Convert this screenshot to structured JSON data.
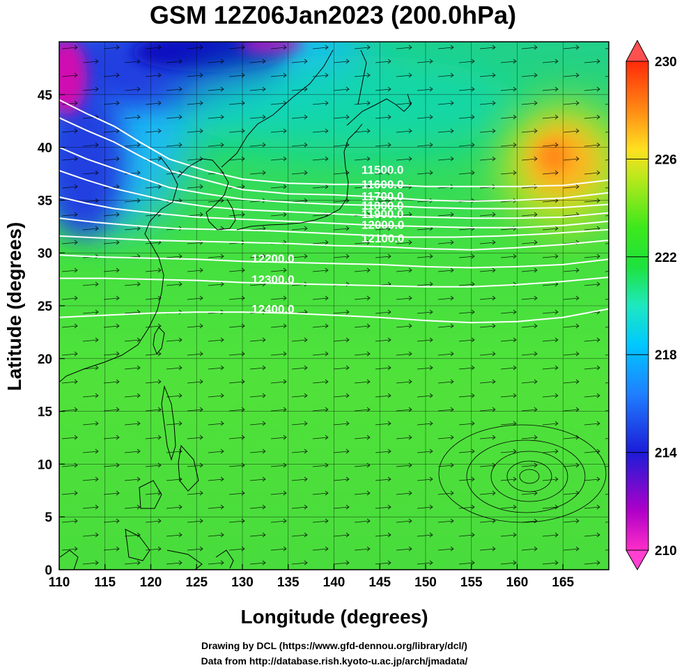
{
  "title": "GSM 12Z06Jan2023 (200.0hPa)",
  "xlabel": "Longitude (degrees)",
  "ylabel": "Latitude  (degrees)",
  "credits": [
    "Drawing by DCL (https://www.gfd-dennou.org/library/dcl/)",
    "Data from http://database.rish.kyoto-u.ac.jp/arch/jmadata/"
  ],
  "map_data": {
    "lon_range": [
      110,
      170
    ],
    "lat_range": [
      0,
      50
    ],
    "lon_ticks": [
      110,
      115,
      120,
      125,
      130,
      135,
      140,
      145,
      150,
      155,
      160,
      165
    ],
    "lat_ticks": [
      0,
      5,
      10,
      15,
      20,
      25,
      30,
      35,
      40,
      45
    ],
    "grid": true,
    "colorbar": {
      "range": [
        210,
        230
      ],
      "tick_labels": [
        "230",
        "226",
        "222",
        "218",
        "214",
        "210"
      ],
      "extend": "both"
    },
    "height_contours": [
      {
        "label": "11500.0",
        "pts": [
          [
            110,
            44.5
          ],
          [
            113,
            43.2
          ],
          [
            116,
            42.0
          ],
          [
            119,
            40.4
          ],
          [
            122,
            38.9
          ],
          [
            126,
            37.8
          ],
          [
            130,
            37.0
          ],
          [
            135,
            36.6
          ],
          [
            140,
            36.5
          ],
          [
            145,
            36.5
          ],
          [
            150,
            36.3
          ],
          [
            155,
            36.3
          ],
          [
            160,
            36.3
          ],
          [
            165,
            36.4
          ],
          [
            170,
            36.9
          ]
        ]
      },
      {
        "label": "11600.0",
        "pts": [
          [
            110,
            42.8
          ],
          [
            113,
            41.6
          ],
          [
            116,
            40.5
          ],
          [
            119,
            39.1
          ],
          [
            122,
            37.8
          ],
          [
            126,
            36.9
          ],
          [
            130,
            36.0
          ],
          [
            135,
            35.6
          ],
          [
            140,
            35.5
          ],
          [
            145,
            35.3
          ],
          [
            150,
            35.0
          ],
          [
            155,
            34.9
          ],
          [
            160,
            35.0
          ],
          [
            165,
            35.2
          ],
          [
            170,
            35.7
          ]
        ]
      },
      {
        "label": "11700.0",
        "pts": [
          [
            110,
            40.0
          ],
          [
            113,
            38.9
          ],
          [
            116,
            38.0
          ],
          [
            119,
            37.1
          ],
          [
            122,
            36.2
          ],
          [
            126,
            35.6
          ],
          [
            130,
            35.1
          ],
          [
            135,
            34.8
          ],
          [
            140,
            34.6
          ],
          [
            145,
            34.5
          ],
          [
            150,
            34.3
          ],
          [
            155,
            34.2
          ],
          [
            160,
            34.2
          ],
          [
            165,
            34.3
          ],
          [
            170,
            34.6
          ]
        ]
      },
      {
        "label": "11800.0",
        "pts": [
          [
            110,
            37.8
          ],
          [
            113,
            36.9
          ],
          [
            116,
            36.1
          ],
          [
            119,
            35.5
          ],
          [
            122,
            34.9
          ],
          [
            126,
            34.4
          ],
          [
            130,
            34.1
          ],
          [
            135,
            33.9
          ],
          [
            140,
            33.7
          ],
          [
            145,
            33.5
          ],
          [
            150,
            33.4
          ],
          [
            155,
            33.3
          ],
          [
            160,
            33.3
          ],
          [
            165,
            33.4
          ],
          [
            170,
            33.8
          ]
        ]
      },
      {
        "label": "11900.0",
        "pts": [
          [
            110,
            35.3
          ],
          [
            113,
            34.7
          ],
          [
            116,
            34.2
          ],
          [
            120,
            33.8
          ],
          [
            125,
            33.4
          ],
          [
            130,
            33.2
          ],
          [
            135,
            33.0
          ],
          [
            140,
            32.8
          ],
          [
            145,
            32.6
          ],
          [
            150,
            32.5
          ],
          [
            155,
            32.4
          ],
          [
            160,
            32.4
          ],
          [
            165,
            32.6
          ],
          [
            170,
            33.0
          ]
        ]
      },
      {
        "label": "12000.0",
        "pts": [
          [
            110,
            33.3
          ],
          [
            114,
            32.9
          ],
          [
            118,
            32.6
          ],
          [
            123,
            32.3
          ],
          [
            128,
            32.2
          ],
          [
            133,
            32.1
          ],
          [
            138,
            31.9
          ],
          [
            143,
            31.7
          ],
          [
            148,
            31.5
          ],
          [
            153,
            31.5
          ],
          [
            158,
            31.6
          ],
          [
            163,
            31.8
          ],
          [
            170,
            32.2
          ]
        ]
      },
      {
        "label": "12100.0",
        "pts": [
          [
            110,
            31.6
          ],
          [
            115,
            31.4
          ],
          [
            120,
            31.2
          ],
          [
            125,
            31.1
          ],
          [
            130,
            31.0
          ],
          [
            135,
            30.9
          ],
          [
            140,
            30.7
          ],
          [
            145,
            30.6
          ],
          [
            150,
            30.4
          ],
          [
            155,
            30.3
          ],
          [
            160,
            30.5
          ],
          [
            165,
            30.8
          ],
          [
            170,
            31.2
          ]
        ]
      },
      {
        "label": "12200.0",
        "pts": [
          [
            110,
            29.8
          ],
          [
            115,
            29.6
          ],
          [
            120,
            29.5
          ],
          [
            125,
            29.4
          ],
          [
            130,
            29.2
          ],
          [
            135,
            29.1
          ],
          [
            140,
            29.0
          ],
          [
            145,
            28.9
          ],
          [
            150,
            28.7
          ],
          [
            155,
            28.6
          ],
          [
            160,
            28.7
          ],
          [
            165,
            28.9
          ],
          [
            170,
            29.4
          ]
        ]
      },
      {
        "label": "12300.0",
        "pts": [
          [
            110,
            27.6
          ],
          [
            115,
            27.6
          ],
          [
            120,
            27.5
          ],
          [
            125,
            27.4
          ],
          [
            130,
            27.2
          ],
          [
            135,
            27.1
          ],
          [
            140,
            27.0
          ],
          [
            145,
            26.9
          ],
          [
            150,
            26.8
          ],
          [
            155,
            26.8
          ],
          [
            160,
            27.0
          ],
          [
            165,
            27.3
          ],
          [
            170,
            27.7
          ]
        ]
      },
      {
        "label": "12400.0",
        "pts": [
          [
            110,
            23.9
          ],
          [
            115,
            24.1
          ],
          [
            120,
            24.3
          ],
          [
            125,
            24.4
          ],
          [
            130,
            24.4
          ],
          [
            135,
            24.3
          ],
          [
            140,
            24.1
          ],
          [
            145,
            23.9
          ],
          [
            150,
            23.6
          ],
          [
            155,
            23.4
          ],
          [
            160,
            23.5
          ],
          [
            165,
            23.9
          ],
          [
            170,
            24.7
          ]
        ]
      }
    ]
  }
}
